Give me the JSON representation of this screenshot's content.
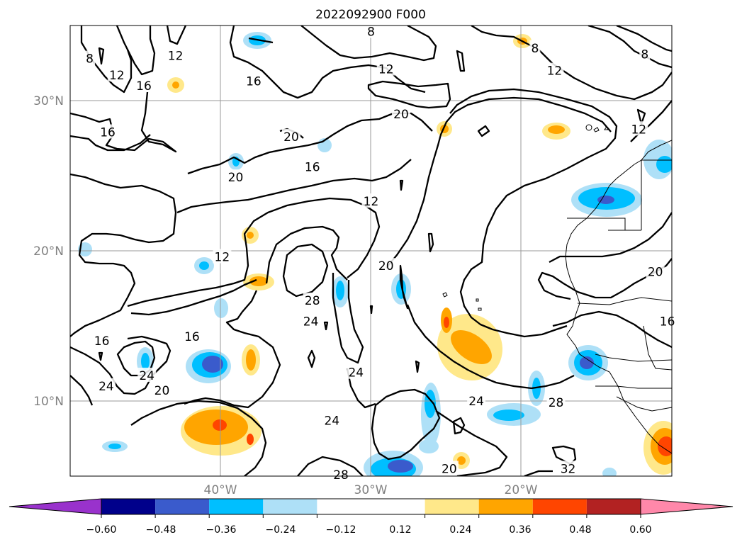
{
  "chart_data": {
    "type": "heatmap",
    "title": "2022092900 F000",
    "x_ticks": [
      "40°W",
      "30°W",
      "20°W"
    ],
    "y_ticks": [
      "30°N",
      "20°N",
      "10°N"
    ],
    "lon_range": [
      -50,
      -10
    ],
    "lat_range": [
      5,
      35
    ],
    "grid": true,
    "colorbar": {
      "orientation": "horizontal",
      "extend": "both",
      "levels": [
        -0.6,
        -0.48,
        -0.36,
        -0.24,
        -0.12,
        0.12,
        0.24,
        0.36,
        0.48,
        0.6
      ],
      "tick_labels": [
        "−0.60",
        "−0.48",
        "−0.36",
        "−0.24",
        "−0.12",
        "0.12",
        "0.24",
        "0.36",
        "0.48",
        "0.60"
      ],
      "colors": [
        "#9932cc",
        "#00008b",
        "#3a5bcc",
        "#00bfff",
        "#aee0f7",
        "#ffffff",
        "#ffe88a",
        "#ffa500",
        "#ff4500",
        "#b22222",
        "#ff88aa"
      ]
    },
    "contour_labels": [
      {
        "text": "8",
        "lon": -48.7,
        "lat": 32.8
      },
      {
        "text": "12",
        "lon": -46.9,
        "lat": 31.7
      },
      {
        "text": "12",
        "lon": -43.0,
        "lat": 33.0
      },
      {
        "text": "16",
        "lon": -45.1,
        "lat": 31.0
      },
      {
        "text": "16",
        "lon": -37.8,
        "lat": 31.3
      },
      {
        "text": "8",
        "lon": -30.0,
        "lat": 34.6
      },
      {
        "text": "12",
        "lon": -29.0,
        "lat": 32.1
      },
      {
        "text": "8",
        "lon": -19.1,
        "lat": 33.5
      },
      {
        "text": "12",
        "lon": -17.8,
        "lat": 32.0
      },
      {
        "text": "8",
        "lon": -11.8,
        "lat": 33.1
      },
      {
        "text": "20",
        "lon": -28.0,
        "lat": 29.1
      },
      {
        "text": "16",
        "lon": -47.5,
        "lat": 27.9
      },
      {
        "text": "20",
        "lon": -35.3,
        "lat": 27.6
      },
      {
        "text": "16",
        "lon": -33.9,
        "lat": 25.6
      },
      {
        "text": "20",
        "lon": -39.0,
        "lat": 24.9
      },
      {
        "text": "12",
        "lon": -30.0,
        "lat": 23.3
      },
      {
        "text": "12",
        "lon": -12.2,
        "lat": 28.1
      },
      {
        "text": "12",
        "lon": -39.9,
        "lat": 19.6
      },
      {
        "text": "20",
        "lon": -29.0,
        "lat": 19.0
      },
      {
        "text": "28",
        "lon": -33.9,
        "lat": 16.7
      },
      {
        "text": "24",
        "lon": -34.0,
        "lat": 15.3
      },
      {
        "text": "16",
        "lon": -47.9,
        "lat": 14.0
      },
      {
        "text": "16",
        "lon": -41.9,
        "lat": 14.3
      },
      {
        "text": "24",
        "lon": -31.0,
        "lat": 11.9
      },
      {
        "text": "24",
        "lon": -47.6,
        "lat": 11.0
      },
      {
        "text": "24",
        "lon": -44.9,
        "lat": 11.7
      },
      {
        "text": "20",
        "lon": -43.9,
        "lat": 10.7
      },
      {
        "text": "24",
        "lon": -23.0,
        "lat": 10.0
      },
      {
        "text": "28",
        "lon": -17.7,
        "lat": 9.9
      },
      {
        "text": "24",
        "lon": -32.6,
        "lat": 8.7
      },
      {
        "text": "20",
        "lon": -11.1,
        "lat": 18.6
      },
      {
        "text": "16",
        "lon": -10.3,
        "lat": 15.3
      },
      {
        "text": "28",
        "lon": -32.0,
        "lat": 5.1
      },
      {
        "text": "20",
        "lon": -24.8,
        "lat": 5.5
      },
      {
        "text": "32",
        "lon": -16.9,
        "lat": 5.5
      }
    ]
  }
}
